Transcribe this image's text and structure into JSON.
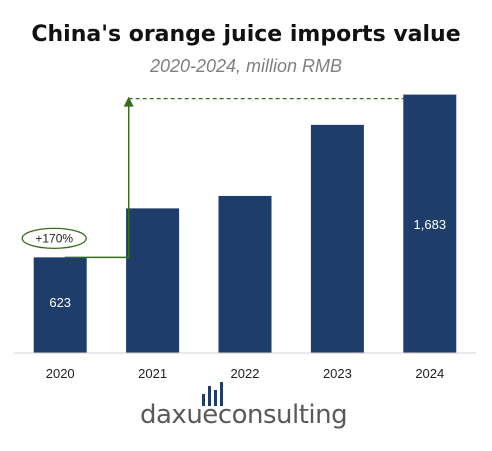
{
  "chart_data": {
    "type": "bar",
    "title": "China's orange juice imports value",
    "subtitle": "2020-2024, million RMB",
    "categories": [
      "2020",
      "2021",
      "2022",
      "2023",
      "2024"
    ],
    "values": [
      623,
      942,
      1023,
      1486,
      1683
    ],
    "data_labels": [
      "623",
      null,
      null,
      null,
      "1,683"
    ],
    "ylim": [
      0,
      1700
    ],
    "grid": false,
    "bar_color": "#1f3d6b",
    "annotation": {
      "text": "+170%",
      "from_category": "2020",
      "to_category": "2024",
      "color": "#3a6b1e"
    }
  },
  "branding": {
    "logo_part1": "daxue",
    "logo_part2": "consulting"
  }
}
